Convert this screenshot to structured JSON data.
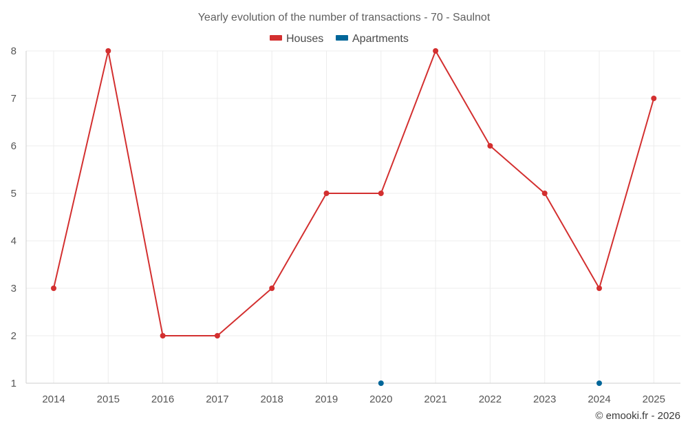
{
  "chart_data": {
    "type": "line",
    "title": "Yearly evolution of the number of transactions - 70 - Saulnot",
    "categories": [
      "2014",
      "2015",
      "2016",
      "2017",
      "2018",
      "2019",
      "2020",
      "2021",
      "2022",
      "2023",
      "2024",
      "2025"
    ],
    "series": [
      {
        "name": "Houses",
        "color": "#d32f2f",
        "values": [
          3,
          8,
          2,
          2,
          3,
          5,
          5,
          8,
          6,
          5,
          3,
          7
        ]
      },
      {
        "name": "Apartments",
        "color": "#006699",
        "values": [
          null,
          null,
          null,
          null,
          null,
          null,
          1,
          null,
          null,
          null,
          1,
          null
        ]
      }
    ],
    "ylim": [
      1,
      8
    ],
    "yticks": [
      1,
      2,
      3,
      4,
      5,
      6,
      7,
      8
    ],
    "grid": true,
    "legend_position": "top-center",
    "xlabel": "",
    "ylabel": ""
  },
  "credit": "© emooki.fr - 2026"
}
